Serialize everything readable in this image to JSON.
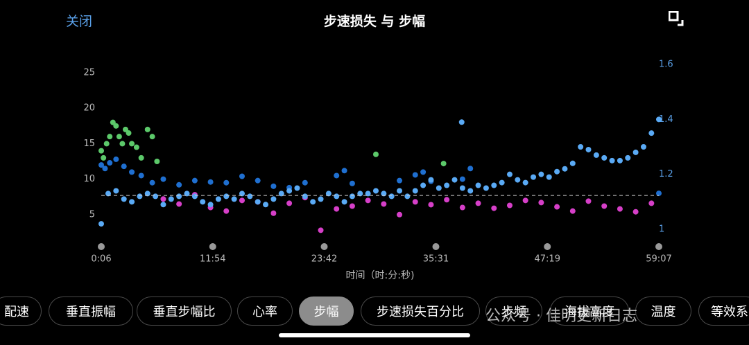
{
  "header": {
    "close": "关闭",
    "title": "步速损失 与 步幅"
  },
  "chart_data": {
    "type": "scatter",
    "xlabel": "时间（时:分:秒)",
    "xlim": [
      6,
      3547
    ],
    "xticks": [
      {
        "value": 6,
        "label": "0:06"
      },
      {
        "value": 714,
        "label": "11:54"
      },
      {
        "value": 1422,
        "label": "23:42"
      },
      {
        "value": 2131,
        "label": "35:31"
      },
      {
        "value": 2839,
        "label": "47:19"
      },
      {
        "value": 3547,
        "label": "59:07"
      }
    ],
    "ylim": [
      0,
      25
    ],
    "yticks": [
      5,
      10,
      15,
      20,
      25
    ],
    "y2lim": [
      1,
      1.6
    ],
    "y2ticks": [
      1,
      1.2,
      1.4,
      1.6
    ],
    "average_line": 7.7,
    "series": [
      {
        "color": "#d63fc8",
        "x": [
          400,
          500,
          600,
          700,
          800,
          900,
          1000,
          1100,
          1200,
          1300,
          1400,
          1500,
          1600,
          1700,
          1800,
          1900,
          2000,
          2100,
          2200,
          2300,
          2400,
          2500,
          2600,
          2700,
          2800,
          2900,
          3000,
          3100,
          3200,
          3300,
          3400,
          3500
        ],
        "values": [
          7.2,
          6.5,
          7.8,
          6.0,
          5.5,
          7.0,
          6.8,
          5.2,
          6.6,
          7.4,
          2.8,
          5.8,
          6.2,
          7.0,
          6.5,
          5.0,
          6.8,
          6.4,
          7.1,
          6.0,
          6.6,
          5.9,
          6.3,
          7.0,
          6.7,
          6.1,
          5.5,
          6.9,
          6.2,
          5.8,
          5.4,
          6.6
        ]
      },
      {
        "color": "#1f6fd0",
        "x": [
          6,
          30,
          60,
          100,
          150,
          200,
          260,
          330,
          400,
          500,
          600,
          700,
          800,
          900,
          1000,
          1100,
          1200,
          1300,
          1500,
          1550,
          1600,
          1900,
          2000,
          2050,
          2100,
          2300,
          2350,
          3547
        ],
        "values": [
          12,
          11.5,
          12.3,
          12.8,
          11.8,
          11,
          10.5,
          9.5,
          10,
          9.2,
          9.8,
          9.6,
          9.5,
          10.4,
          9.8,
          9.0,
          8.8,
          9.5,
          10.5,
          11.2,
          9.4,
          9.8,
          10.6,
          11,
          9.7,
          10,
          11.5,
          8
        ]
      },
      {
        "color": "#5cc96a",
        "x": [
          6,
          20,
          40,
          60,
          80,
          100,
          120,
          140,
          160,
          180,
          200,
          230,
          260,
          300,
          330,
          360,
          1750,
          2180
        ],
        "values": [
          14,
          13,
          15,
          16,
          18,
          17.5,
          16,
          15,
          17,
          16.5,
          15,
          14.5,
          13,
          17,
          16,
          12.5,
          13.5,
          12.2
        ]
      },
      {
        "color": "#5aaaf5",
        "axis": "y2",
        "x": [
          6,
          50,
          100,
          150,
          200,
          250,
          300,
          350,
          400,
          450,
          500,
          550,
          600,
          650,
          700,
          750,
          800,
          850,
          900,
          950,
          1000,
          1050,
          1100,
          1150,
          1200,
          1250,
          1300,
          1350,
          1400,
          1450,
          1500,
          1550,
          1600,
          1650,
          1700,
          1750,
          1800,
          1850,
          1900,
          1950,
          2000,
          2050,
          2100,
          2150,
          2200,
          2250,
          2295,
          2300,
          2350,
          2400,
          2450,
          2500,
          2550,
          2600,
          2650,
          2700,
          2750,
          2800,
          2850,
          2900,
          2950,
          3000,
          3050,
          3100,
          3150,
          3200,
          3250,
          3300,
          3350,
          3400,
          3450,
          3500,
          3547
        ],
        "values": [
          1.02,
          1.13,
          1.14,
          1.11,
          1.1,
          1.12,
          1.13,
          1.12,
          1.09,
          1.11,
          1.12,
          1.13,
          1.12,
          1.1,
          1.09,
          1.11,
          1.12,
          1.11,
          1.13,
          1.12,
          1.1,
          1.09,
          1.11,
          1.13,
          1.14,
          1.15,
          1.12,
          1.1,
          1.11,
          1.13,
          1.12,
          1.1,
          1.12,
          1.13,
          1.13,
          1.14,
          1.13,
          1.12,
          1.14,
          1.12,
          1.14,
          1.16,
          1.18,
          1.15,
          1.16,
          1.18,
          1.39,
          1.15,
          1.14,
          1.16,
          1.15,
          1.16,
          1.17,
          1.2,
          1.18,
          1.17,
          1.19,
          1.2,
          1.19,
          1.21,
          1.22,
          1.24,
          1.3,
          1.29,
          1.27,
          1.26,
          1.25,
          1.25,
          1.26,
          1.28,
          1.3,
          1.35,
          1.4
        ]
      }
    ]
  },
  "tabs": [
    "配速",
    "垂直振幅",
    "垂直步幅比",
    "心率",
    "步幅",
    "步速损失百分比",
    "步频",
    "海拔高度",
    "温度",
    "等效系"
  ],
  "selected_tab": 4,
  "watermark": "公众号 · 佳明更新日志"
}
